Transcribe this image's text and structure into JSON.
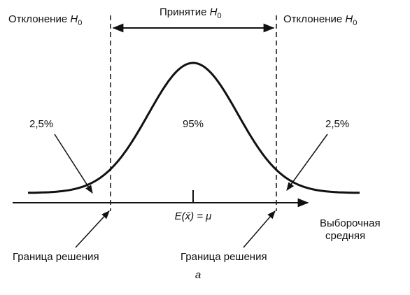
{
  "regions": {
    "left": {
      "text": "Отклонение",
      "var": "H",
      "sub": "0"
    },
    "center": {
      "text": "Принятие",
      "var": "H",
      "sub": "0"
    },
    "right": {
      "text": "Отклонение",
      "var": "H",
      "sub": "0"
    }
  },
  "areas": {
    "left": "2,5%",
    "center": "95%",
    "right": "2,5%"
  },
  "mean_label": "E(x̄) = μ",
  "axis_label": [
    "Выборочная",
    "средняя"
  ],
  "boundaries": [
    "Граница решения",
    "Граница решения"
  ],
  "caption": "а"
}
